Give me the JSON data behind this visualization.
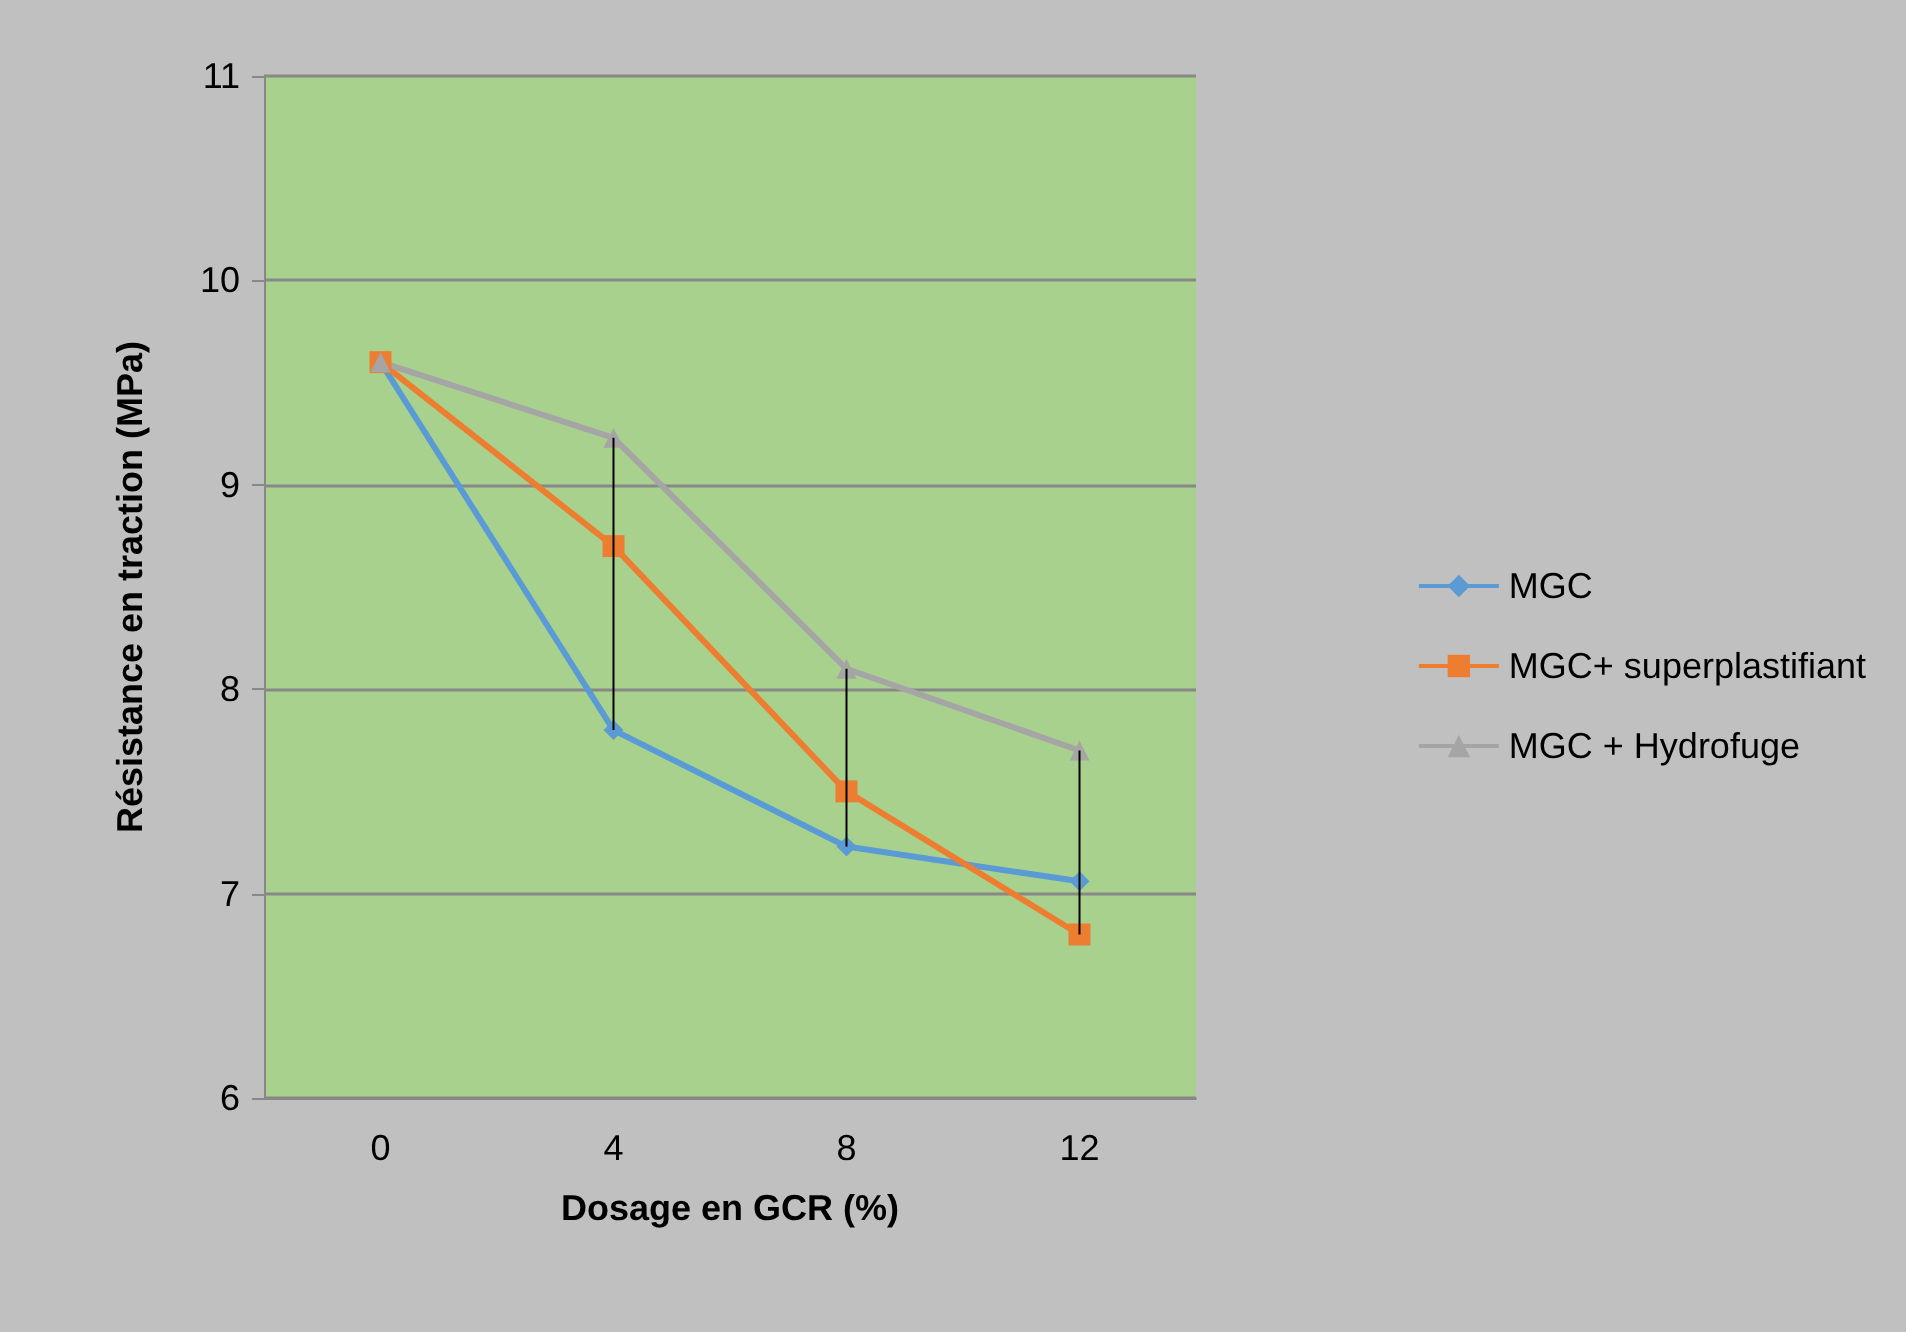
{
  "chart_data": {
    "type": "line",
    "xlabel": "Dosage en GCR (%)",
    "ylabel": "Résistance en traction (MPa)",
    "categories": [
      "0",
      "4",
      "8",
      "12"
    ],
    "series": [
      {
        "name": "MGC",
        "color": "#5b9bd5",
        "marker": "diamond",
        "values": [
          9.6,
          7.8,
          7.23,
          7.06
        ],
        "errors": [
          null,
          [
            7.8,
            9.23
          ],
          [
            7.23,
            8.1
          ],
          null
        ]
      },
      {
        "name": "MGC+ superplastifiant",
        "color": "#ed7d31",
        "marker": "square",
        "values": [
          9.6,
          8.7,
          7.5,
          6.8
        ],
        "errors": [
          null,
          null,
          null,
          [
            6.8,
            7.7
          ]
        ]
      },
      {
        "name": "MGC + Hydrofuge",
        "color": "#a5a5a5",
        "marker": "triangle",
        "values": [
          9.6,
          9.23,
          8.1,
          7.7
        ]
      }
    ],
    "ylim": [
      6,
      11
    ],
    "yticks": [
      6,
      7,
      8,
      9,
      10,
      11
    ],
    "grid": "y",
    "legend": "right"
  }
}
